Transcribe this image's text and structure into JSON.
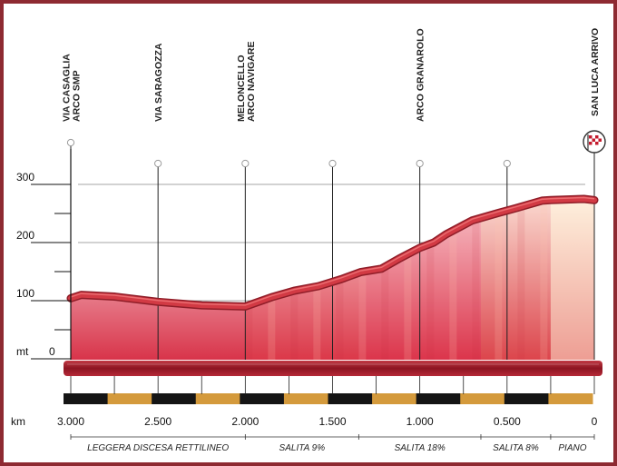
{
  "chart_data": {
    "type": "area",
    "title": "",
    "xlabel": "km",
    "ylabel": "mt",
    "x_unit": "km",
    "y_unit": "mt",
    "xlim": [
      3.0,
      0
    ],
    "ylim": [
      0,
      300
    ],
    "x_ticks": [
      3.0,
      2.5,
      2.0,
      1.5,
      1.0,
      0.5,
      0
    ],
    "x_tick_labels": [
      "3.000",
      "2.500",
      "2.000",
      "1.500",
      "1.000",
      "0.500",
      "0"
    ],
    "y_ticks": [
      0,
      100,
      200,
      300
    ],
    "y_tick_labels": [
      "0",
      "100",
      "200",
      "300"
    ],
    "profile": {
      "x": [
        3.0,
        2.94,
        2.75,
        2.5,
        2.25,
        2.0,
        1.85,
        1.72,
        1.58,
        1.45,
        1.34,
        1.22,
        1.12,
        1.0,
        0.92,
        0.85,
        0.7,
        0.55,
        0.45,
        0.3,
        0.25,
        0.06,
        0.0
      ],
      "y": [
        104,
        110,
        107,
        98,
        92,
        90,
        106,
        117,
        125,
        137,
        149,
        155,
        172,
        191,
        200,
        214,
        238,
        251,
        259,
        272,
        273,
        275,
        273
      ]
    },
    "waypoints": [
      {
        "km": 3.0,
        "label": [
          "VIA CASAGLIA",
          "ARCO SMP"
        ]
      },
      {
        "km": 2.5,
        "label": [
          "VIA SARAGOZZA"
        ]
      },
      {
        "km": 2.0,
        "label": [
          "MELONCELLO",
          "ARCO NAVIGARE"
        ]
      },
      {
        "km": 1.5,
        "label": []
      },
      {
        "km": 1.0,
        "label": [
          "ARCO GRANAROLO"
        ]
      },
      {
        "km": 0.5,
        "label": []
      },
      {
        "km": 0.0,
        "label": [
          "SAN LUCA ARRIVO"
        ],
        "finish": true
      }
    ],
    "sections": [
      {
        "from": 3.0,
        "to": 2.0,
        "label": "LEGGERA DISCESA RETTILINEO"
      },
      {
        "from": 2.0,
        "to": 1.35,
        "label": "SALITA 9%"
      },
      {
        "from": 1.35,
        "to": 0.65,
        "label": "SALITA 18%"
      },
      {
        "from": 0.65,
        "to": 0.25,
        "label": "SALITA 8%"
      },
      {
        "from": 0.25,
        "to": 0.0,
        "label": "PIANO"
      }
    ],
    "strip_pattern": [
      "black",
      "gold",
      "black",
      "gold",
      "black",
      "gold",
      "black",
      "gold",
      "black",
      "gold",
      "black",
      "gold"
    ],
    "colors": {
      "profile_line": "#d23a44",
      "profile_line_dark": "#8f1d28",
      "fill_top": "#fde8ea",
      "fill_bottom": "#d8344a",
      "base_bar": "#a51d2d",
      "strip_dark": "#151515",
      "strip_gold": "#d49a3c",
      "grid": "#888888",
      "frame": "#8e2a32"
    }
  }
}
